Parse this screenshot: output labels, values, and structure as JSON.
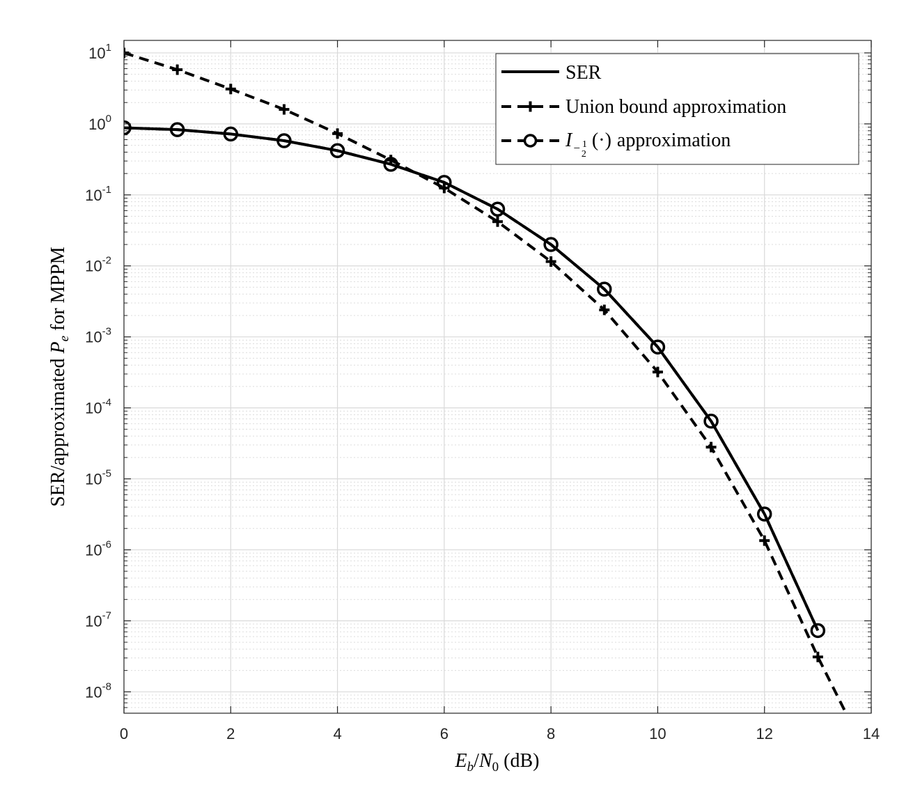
{
  "chart_data": {
    "type": "line",
    "xlabel": "E_b/N_0 (dB)",
    "xlabel_parts": {
      "e": "E",
      "b": "b",
      "slash": "/",
      "n": "N",
      "zero": "0",
      "unit": " (dB)"
    },
    "ylabel": "SER/approximated P_e for MPPM",
    "ylabel_parts": {
      "pre": "SER/approximated ",
      "p": "P",
      "e": "e",
      "post": " for MPPM"
    },
    "xlim": [
      0,
      14
    ],
    "ylim": [
      5e-09,
      15
    ],
    "yscale": "log",
    "grid": true,
    "minor_grid": true,
    "legend_position": "top-right",
    "x_ticks": [
      "0",
      "2",
      "4",
      "6",
      "8",
      "10",
      "12",
      "14"
    ],
    "y_ticks": [
      {
        "base": "10",
        "exp": "1"
      },
      {
        "base": "10",
        "exp": "0"
      },
      {
        "base": "10",
        "exp": "-1"
      },
      {
        "base": "10",
        "exp": "-2"
      },
      {
        "base": "10",
        "exp": "-3"
      },
      {
        "base": "10",
        "exp": "-4"
      },
      {
        "base": "10",
        "exp": "-5"
      },
      {
        "base": "10",
        "exp": "-6"
      },
      {
        "base": "10",
        "exp": "-7"
      },
      {
        "base": "10",
        "exp": "-8"
      }
    ],
    "series": [
      {
        "name": "SER",
        "style": "solid",
        "marker": "none",
        "x": [
          0,
          1,
          2,
          3,
          4,
          5,
          6,
          7,
          8,
          9,
          10,
          11,
          12,
          13
        ],
        "values": [
          0.88,
          0.83,
          0.72,
          0.58,
          0.42,
          0.27,
          0.15,
          0.063,
          0.02,
          0.0047,
          0.00072,
          6.5e-05,
          3.2e-06,
          7.3e-08
        ]
      },
      {
        "name": "Union bound approximation",
        "style": "dashed",
        "marker": "plus",
        "x": [
          0,
          1,
          2,
          3,
          4,
          5,
          6,
          7,
          8,
          9,
          10,
          11,
          12,
          13,
          13.5
        ],
        "values": [
          10,
          5.8,
          3.1,
          1.6,
          0.73,
          0.31,
          0.125,
          0.042,
          0.0115,
          0.0024,
          0.00032,
          2.8e-05,
          1.35e-06,
          3.1e-08,
          5.5e-09
        ],
        "marker_count": 14
      },
      {
        "name": "I_{-1/2}(·) approximation",
        "style": "dashed",
        "marker": "circle",
        "x": [
          0,
          1,
          2,
          3,
          4,
          5,
          6,
          7,
          8,
          9,
          10,
          11,
          12,
          13
        ],
        "values": [
          0.88,
          0.83,
          0.72,
          0.58,
          0.42,
          0.27,
          0.15,
          0.063,
          0.02,
          0.0047,
          0.00072,
          6.5e-05,
          3.2e-06,
          7.3e-08
        ]
      }
    ],
    "legend_labels": {
      "ser": "SER",
      "union": "Union bound approximation",
      "i_main": "I",
      "i_sub_minus": "−",
      "i_sub_num": "1",
      "i_sub_den": "2",
      "i_arg": "(·)",
      "i_post": "approximation"
    }
  }
}
